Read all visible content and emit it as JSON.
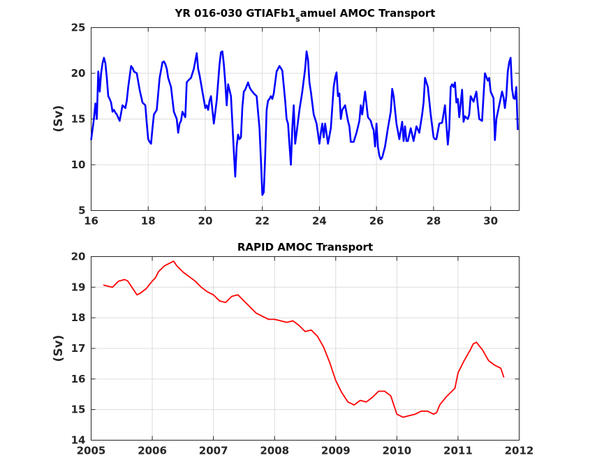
{
  "chart_data": [
    {
      "type": "line",
      "title_main": "YR 016-030 GTIAFb1",
      "title_sub": "s",
      "title_rest": "amuel AMOC Transport",
      "xlabel": "",
      "ylabel": "(Sv)",
      "xlim": [
        16,
        31
      ],
      "ylim": [
        5,
        25
      ],
      "xticks": [
        "16",
        "18",
        "20",
        "22",
        "24",
        "26",
        "28",
        "30"
      ],
      "yticks": [
        "5",
        "10",
        "15",
        "20",
        "25"
      ],
      "grid": true,
      "color": "#0000ff",
      "series": [
        {
          "x": [
            16.0,
            16.1,
            16.15,
            16.2,
            16.25,
            16.3,
            16.35,
            16.4,
            16.45,
            16.5,
            16.55,
            16.6,
            16.65,
            16.7,
            16.75,
            16.8,
            16.85,
            16.9,
            17.0,
            17.1,
            17.2,
            17.25,
            17.3,
            17.4,
            17.45,
            17.5,
            17.6,
            17.7,
            17.8,
            17.9,
            17.95,
            18.0,
            18.05,
            18.1,
            18.15,
            18.2,
            18.3,
            18.4,
            18.5,
            18.55,
            18.6,
            18.65,
            18.7,
            18.75,
            18.8,
            18.9,
            19.0,
            19.05,
            19.1,
            19.15,
            19.2,
            19.3,
            19.35,
            19.4,
            19.5,
            19.6,
            19.7,
            19.75,
            19.8,
            19.9,
            20.0,
            20.05,
            20.1,
            20.15,
            20.2,
            20.3,
            20.4,
            20.5,
            20.55,
            20.6,
            20.65,
            20.7,
            20.75,
            20.8,
            20.9,
            21.0,
            21.05,
            21.1,
            21.15,
            21.2,
            21.25,
            21.3,
            21.35,
            21.4,
            21.5,
            21.55,
            21.6,
            21.65,
            21.7,
            21.8,
            21.9,
            21.95,
            22.0,
            22.05,
            22.1,
            22.15,
            22.2,
            22.25,
            22.3,
            22.35,
            22.4,
            22.5,
            22.6,
            22.7,
            22.8,
            22.85,
            22.9,
            23.0,
            23.05,
            23.1,
            23.15,
            23.2,
            23.3,
            23.4,
            23.5,
            23.55,
            23.6,
            23.65,
            23.7,
            23.8,
            23.9,
            24.0,
            24.05,
            24.1,
            24.15,
            24.2,
            24.3,
            24.4,
            24.5,
            24.55,
            24.6,
            24.65,
            24.7,
            24.75,
            24.8,
            24.9,
            25.0,
            25.05,
            25.1,
            25.2,
            25.3,
            25.4,
            25.45,
            25.5,
            25.6,
            25.7,
            25.8,
            25.85,
            25.9,
            25.95,
            26.0,
            26.05,
            26.1,
            26.15,
            26.2,
            26.3,
            26.4,
            26.5,
            26.55,
            26.6,
            26.7,
            26.8,
            26.9,
            26.95,
            27.0,
            27.05,
            27.1,
            27.2,
            27.3,
            27.4,
            27.5,
            27.6,
            27.65,
            27.7,
            27.8,
            27.9,
            28.0,
            28.05,
            28.1,
            28.2,
            28.3,
            28.4,
            28.5,
            28.55,
            28.6,
            28.65,
            28.7,
            28.75,
            28.8,
            28.85,
            28.9,
            29.0,
            29.05,
            29.1,
            29.2,
            29.25,
            29.3,
            29.4,
            29.5,
            29.6,
            29.7,
            29.75,
            29.8,
            29.9,
            29.95,
            30.0,
            30.1,
            30.15,
            30.2,
            30.3,
            30.4,
            30.45,
            30.5,
            30.55,
            30.6,
            30.65,
            30.7,
            30.75,
            30.8,
            30.85,
            30.9,
            30.95
          ],
          "y": [
            12.7,
            15.1,
            16.7,
            15.0,
            20.2,
            18.0,
            20.0,
            21.1,
            21.7,
            21.1,
            19.5,
            17.5,
            17.2,
            16.8,
            15.8,
            16.0,
            15.7,
            15.5,
            14.8,
            16.5,
            16.2,
            17.0,
            18.5,
            20.8,
            20.6,
            20.2,
            20.0,
            18.2,
            16.8,
            16.5,
            14.5,
            12.8,
            12.5,
            12.3,
            14.0,
            15.5,
            16.0,
            19.5,
            21.2,
            21.3,
            21.0,
            20.5,
            19.5,
            19.0,
            18.5,
            15.8,
            15.0,
            13.5,
            14.5,
            14.8,
            15.8,
            15.2,
            19.0,
            19.2,
            19.5,
            20.5,
            22.2,
            20.5,
            19.8,
            18.0,
            16.2,
            16.5,
            16.0,
            17.0,
            17.5,
            14.5,
            17.0,
            21.0,
            22.3,
            22.4,
            21.0,
            19.0,
            16.5,
            18.8,
            17.5,
            11.5,
            8.7,
            12.0,
            13.3,
            12.8,
            13.0,
            16.3,
            18.0,
            18.2,
            19.0,
            18.5,
            18.2,
            18.0,
            17.8,
            17.5,
            14.0,
            10.5,
            6.7,
            7.0,
            11.0,
            16.0,
            17.0,
            17.2,
            17.5,
            17.2,
            17.8,
            20.2,
            20.8,
            20.3,
            17.0,
            15.0,
            14.5,
            10.0,
            14.0,
            16.5,
            12.3,
            13.5,
            16.0,
            18.0,
            20.5,
            22.4,
            21.5,
            19.0,
            18.0,
            15.5,
            14.5,
            12.3,
            13.5,
            14.5,
            13.0,
            14.5,
            12.3,
            14.0,
            18.5,
            19.5,
            20.1,
            17.5,
            17.8,
            15.0,
            16.0,
            16.5,
            14.8,
            14.2,
            12.5,
            12.5,
            13.5,
            14.8,
            16.5,
            15.5,
            18.0,
            15.2,
            14.8,
            14.2,
            13.8,
            12.0,
            14.5,
            12.0,
            11.0,
            10.6,
            10.8,
            12.0,
            14.0,
            15.8,
            18.3,
            17.5,
            14.5,
            12.8,
            14.7,
            12.6,
            14.2,
            12.6,
            12.6,
            14.0,
            12.6,
            14.2,
            13.5,
            15.5,
            16.8,
            19.5,
            18.5,
            15.5,
            13.0,
            12.8,
            12.8,
            14.5,
            14.6,
            16.5,
            12.2,
            14.0,
            18.5,
            18.8,
            18.5,
            19.0,
            16.8,
            17.2,
            15.2,
            18.2,
            14.7,
            15.3,
            15.0,
            15.5,
            17.5,
            16.9,
            18.0,
            15.0,
            14.8,
            17.5,
            20.0,
            19.2,
            19.5,
            18.0,
            17.3,
            12.7,
            15.0,
            16.5,
            18.0,
            17.4,
            16.2,
            17.5,
            20.2,
            21.2,
            21.7,
            18.3,
            17.3,
            17.2,
            18.5,
            13.8
          ]
        }
      ]
    },
    {
      "type": "line",
      "title": "RAPID AMOC Transport",
      "xlabel": "",
      "ylabel": "(Sv)",
      "xlim": [
        2005,
        2012
      ],
      "ylim": [
        14,
        20
      ],
      "xticks": [
        "2005",
        "2006",
        "2007",
        "2008",
        "2009",
        "2010",
        "2011",
        "2012"
      ],
      "yticks": [
        "14",
        "15",
        "16",
        "17",
        "18",
        "19",
        "20"
      ],
      "grid": true,
      "color": "#ff0000",
      "series": [
        {
          "x": [
            2005.2,
            2005.3,
            2005.35,
            2005.45,
            2005.55,
            2005.6,
            2005.7,
            2005.75,
            2005.8,
            2005.9,
            2006.0,
            2006.05,
            2006.1,
            2006.2,
            2006.3,
            2006.35,
            2006.4,
            2006.5,
            2006.6,
            2006.7,
            2006.8,
            2006.9,
            2007.0,
            2007.1,
            2007.2,
            2007.3,
            2007.4,
            2007.5,
            2007.6,
            2007.7,
            2007.8,
            2007.9,
            2008.0,
            2008.1,
            2008.2,
            2008.3,
            2008.4,
            2008.5,
            2008.6,
            2008.7,
            2008.8,
            2008.9,
            2009.0,
            2009.1,
            2009.2,
            2009.3,
            2009.4,
            2009.5,
            2009.6,
            2009.7,
            2009.8,
            2009.9,
            2009.95,
            2010.0,
            2010.1,
            2010.2,
            2010.3,
            2010.4,
            2010.5,
            2010.6,
            2010.65,
            2010.7,
            2010.8,
            2010.9,
            2010.95,
            2011.0,
            2011.1,
            2011.2,
            2011.25,
            2011.3,
            2011.4,
            2011.5,
            2011.6,
            2011.7,
            2011.75
          ],
          "y": [
            19.07,
            19.02,
            19.0,
            19.2,
            19.25,
            19.2,
            18.9,
            18.75,
            18.8,
            18.95,
            19.2,
            19.3,
            19.5,
            19.7,
            19.8,
            19.85,
            19.7,
            19.5,
            19.35,
            19.2,
            19.0,
            18.85,
            18.75,
            18.55,
            18.5,
            18.7,
            18.75,
            18.55,
            18.35,
            18.15,
            18.05,
            17.95,
            17.95,
            17.9,
            17.85,
            17.9,
            17.75,
            17.55,
            17.6,
            17.4,
            17.05,
            16.55,
            15.95,
            15.55,
            15.25,
            15.15,
            15.3,
            15.25,
            15.4,
            15.6,
            15.6,
            15.45,
            15.15,
            14.85,
            14.75,
            14.8,
            14.85,
            14.95,
            14.95,
            14.85,
            14.9,
            15.15,
            15.4,
            15.6,
            15.7,
            16.2,
            16.6,
            16.95,
            17.15,
            17.2,
            16.95,
            16.6,
            16.45,
            16.35,
            16.05
          ]
        }
      ]
    }
  ]
}
